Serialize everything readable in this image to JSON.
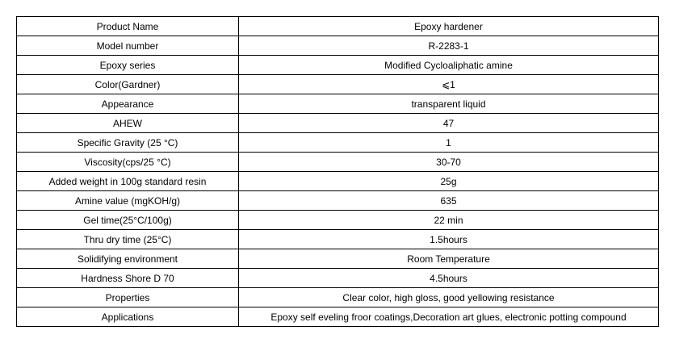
{
  "table": {
    "rows": [
      [
        "Product Name",
        "Epoxy hardener"
      ],
      [
        "Model number",
        "R-2283-1"
      ],
      [
        "Epoxy series",
        "Modified Cycloaliphatic amine"
      ],
      [
        "Color(Gardner)",
        "⩽1"
      ],
      [
        "Appearance",
        "transparent liquid"
      ],
      [
        "AHEW",
        "47"
      ],
      [
        "Specific Gravity (25 °C)",
        "1"
      ],
      [
        "Viscosity(cps/25 °C)",
        "30-70"
      ],
      [
        "Added weight in 100g standard resin",
        "25g"
      ],
      [
        "Amine value (mgKOH/g)",
        "635"
      ],
      [
        "Gel time(25°C/100g)",
        "22 min"
      ],
      [
        "Thru dry time (25°C)",
        "1.5hours"
      ],
      [
        "Solidifying environment",
        "Room Temperature"
      ],
      [
        "Hardness Shore D 70",
        "4.5hours"
      ],
      [
        "Properties",
        "Clear color, high gloss, good yellowing resistance"
      ],
      [
        "Applications",
        "Epoxy self eveling froor coatings,Decoration art glues, electronic potting compound"
      ]
    ]
  }
}
